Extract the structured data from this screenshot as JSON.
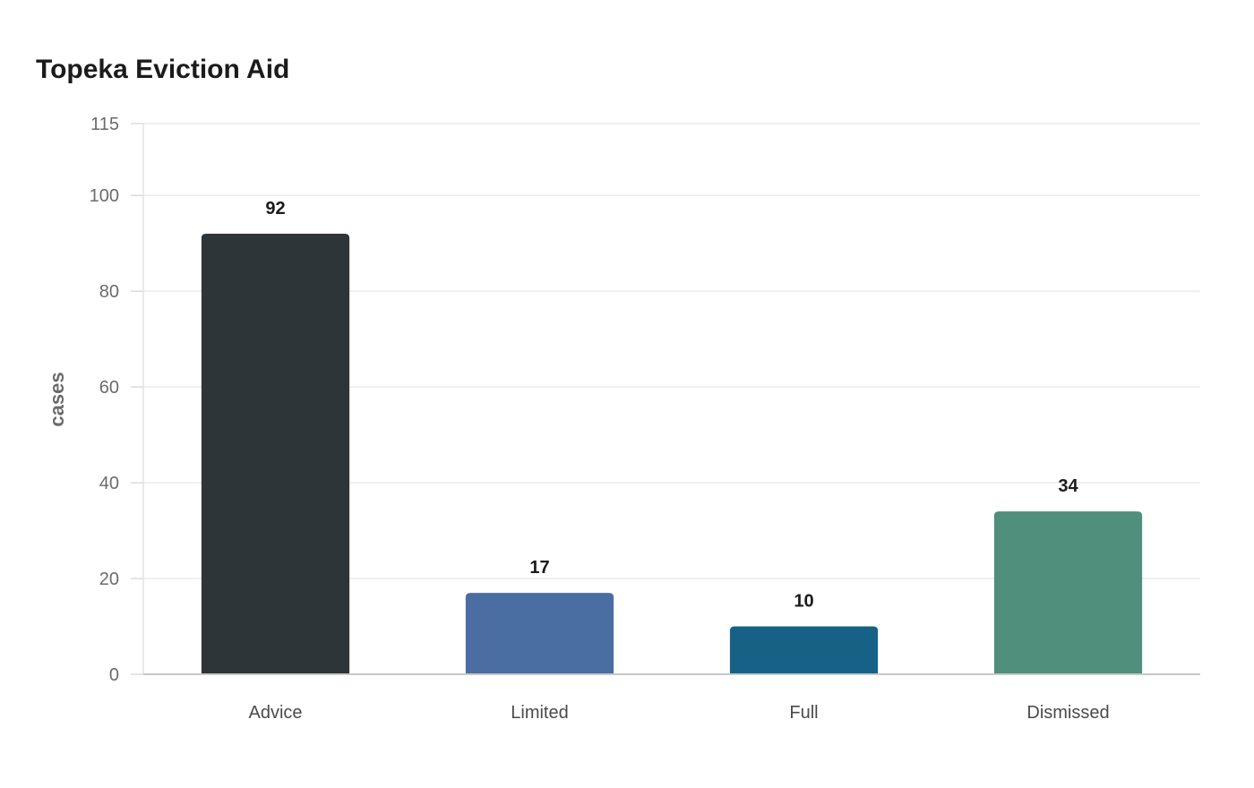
{
  "chart_data": {
    "type": "bar",
    "title": "Topeka Eviction Aid",
    "xlabel": "",
    "ylabel": "cases",
    "categories": [
      "Advice",
      "Limited",
      "Full",
      "Dismissed"
    ],
    "values": [
      92,
      17,
      10,
      34
    ],
    "data_labels": [
      "92",
      "17",
      "10",
      "34"
    ],
    "ylim": [
      0,
      115
    ],
    "yticks": [
      0,
      20,
      40,
      60,
      80,
      100,
      115
    ],
    "grid": true,
    "legend": "none",
    "colors": [
      "#2e3538",
      "#4a6da2",
      "#186186",
      "#4f8f7b"
    ],
    "gridline_color": "#ebebeb",
    "axis_color": "#c8c8c8"
  }
}
